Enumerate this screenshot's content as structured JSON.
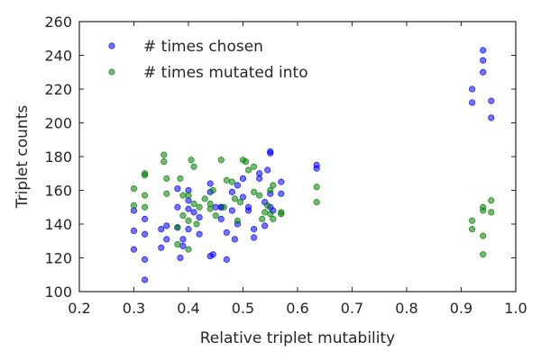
{
  "chart_data": {
    "type": "scatter",
    "title": "",
    "xlabel": "Relative triplet mutability",
    "ylabel": "Triplet counts",
    "xlim": [
      0.2,
      1.0
    ],
    "ylim": [
      100,
      260
    ],
    "xticks": [
      "0.2",
      "0.3",
      "0.4",
      "0.5",
      "0.6",
      "0.7",
      "0.8",
      "0.9",
      "1.0"
    ],
    "yticks": [
      "100",
      "120",
      "140",
      "160",
      "180",
      "200",
      "220",
      "240",
      "260"
    ],
    "grid": false,
    "legend": "top-left",
    "series": [
      {
        "name": "# times chosen",
        "color": "#0000ff",
        "points": [
          [
            0.3,
            136
          ],
          [
            0.3,
            125
          ],
          [
            0.3,
            148
          ],
          [
            0.32,
            119
          ],
          [
            0.32,
            107
          ],
          [
            0.32,
            134
          ],
          [
            0.32,
            143
          ],
          [
            0.35,
            137
          ],
          [
            0.35,
            126
          ],
          [
            0.36,
            139
          ],
          [
            0.36,
            131
          ],
          [
            0.38,
            161
          ],
          [
            0.38,
            150
          ],
          [
            0.38,
            138
          ],
          [
            0.385,
            120
          ],
          [
            0.39,
            131
          ],
          [
            0.39,
            127
          ],
          [
            0.4,
            160
          ],
          [
            0.4,
            154
          ],
          [
            0.4,
            149
          ],
          [
            0.4,
            137
          ],
          [
            0.41,
            147
          ],
          [
            0.42,
            144
          ],
          [
            0.42,
            134
          ],
          [
            0.44,
            159
          ],
          [
            0.44,
            164
          ],
          [
            0.44,
            121
          ],
          [
            0.445,
            122
          ],
          [
            0.45,
            150
          ],
          [
            0.46,
            143
          ],
          [
            0.46,
            150
          ],
          [
            0.46,
            150
          ],
          [
            0.47,
            119
          ],
          [
            0.47,
            135
          ],
          [
            0.48,
            148
          ],
          [
            0.48,
            159
          ],
          [
            0.485,
            131
          ],
          [
            0.49,
            140
          ],
          [
            0.49,
            163
          ],
          [
            0.5,
            167
          ],
          [
            0.5,
            156
          ],
          [
            0.51,
            150
          ],
          [
            0.51,
            148
          ],
          [
            0.52,
            132
          ],
          [
            0.52,
            137
          ],
          [
            0.53,
            167
          ],
          [
            0.53,
            170
          ],
          [
            0.54,
            139
          ],
          [
            0.54,
            153
          ],
          [
            0.545,
            172
          ],
          [
            0.55,
            150
          ],
          [
            0.55,
            158
          ],
          [
            0.55,
            182
          ],
          [
            0.55,
            183
          ],
          [
            0.555,
            148
          ],
          [
            0.57,
            165
          ],
          [
            0.57,
            158
          ],
          [
            0.635,
            175
          ],
          [
            0.635,
            173
          ],
          [
            0.92,
            220
          ],
          [
            0.92,
            212
          ],
          [
            0.94,
            243
          ],
          [
            0.94,
            237
          ],
          [
            0.94,
            230
          ],
          [
            0.955,
            213
          ],
          [
            0.955,
            203
          ]
        ]
      },
      {
        "name": "# times mutated into",
        "color": "#008000",
        "points": [
          [
            0.3,
            161
          ],
          [
            0.3,
            151
          ],
          [
            0.32,
            170
          ],
          [
            0.32,
            169
          ],
          [
            0.32,
            157
          ],
          [
            0.32,
            150
          ],
          [
            0.355,
            181
          ],
          [
            0.355,
            177
          ],
          [
            0.36,
            167
          ],
          [
            0.36,
            158
          ],
          [
            0.38,
            138
          ],
          [
            0.38,
            128
          ],
          [
            0.385,
            167
          ],
          [
            0.39,
            157
          ],
          [
            0.39,
            145
          ],
          [
            0.4,
            157
          ],
          [
            0.4,
            142
          ],
          [
            0.4,
            125
          ],
          [
            0.405,
            178
          ],
          [
            0.41,
            174
          ],
          [
            0.41,
            152
          ],
          [
            0.415,
            140
          ],
          [
            0.42,
            150
          ],
          [
            0.43,
            155
          ],
          [
            0.44,
            152
          ],
          [
            0.44,
            149
          ],
          [
            0.445,
            160
          ],
          [
            0.45,
            145
          ],
          [
            0.46,
            178
          ],
          [
            0.465,
            150
          ],
          [
            0.47,
            166
          ],
          [
            0.48,
            165
          ],
          [
            0.485,
            155
          ],
          [
            0.49,
            142
          ],
          [
            0.495,
            153
          ],
          [
            0.5,
            178
          ],
          [
            0.505,
            177
          ],
          [
            0.51,
            172
          ],
          [
            0.52,
            174
          ],
          [
            0.52,
            159
          ],
          [
            0.53,
            157
          ],
          [
            0.535,
            143
          ],
          [
            0.54,
            147
          ],
          [
            0.545,
            151
          ],
          [
            0.55,
            146
          ],
          [
            0.55,
            160
          ],
          [
            0.555,
            163
          ],
          [
            0.555,
            143
          ],
          [
            0.57,
            147
          ],
          [
            0.57,
            146
          ],
          [
            0.635,
            162
          ],
          [
            0.635,
            153
          ],
          [
            0.92,
            142
          ],
          [
            0.92,
            137
          ],
          [
            0.94,
            150
          ],
          [
            0.94,
            148
          ],
          [
            0.94,
            133
          ],
          [
            0.94,
            122
          ],
          [
            0.955,
            154
          ],
          [
            0.955,
            147
          ]
        ]
      }
    ]
  }
}
